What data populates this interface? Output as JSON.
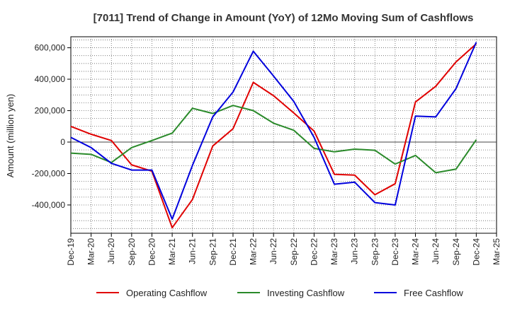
{
  "chart_data": {
    "type": "line",
    "title": "[7011]  Trend of Change in Amount (YoY) of 12Mo Moving Sum of Cashflows",
    "xlabel": "",
    "ylabel": "Amount (million yen)",
    "ylim": [
      -580000,
      670000
    ],
    "yticks": [
      -400000,
      -200000,
      0,
      200000,
      400000,
      600000
    ],
    "ytick_labels": [
      "-400,000",
      "-200,000",
      "0",
      "200,000",
      "400,000",
      "600,000"
    ],
    "categories": [
      "Dec-19",
      "Mar-20",
      "Jun-20",
      "Sep-20",
      "Dec-20",
      "Mar-21",
      "Jun-21",
      "Sep-21",
      "Dec-21",
      "Mar-22",
      "Jun-22",
      "Sep-22",
      "Dec-22",
      "Mar-23",
      "Jun-23",
      "Sep-23",
      "Dec-23",
      "Mar-24",
      "Jun-24",
      "Sep-24",
      "Dec-24",
      "Mar-25"
    ],
    "grid": true,
    "legend_position": "bottom",
    "series": [
      {
        "name": "Operating Cashflow",
        "color": "#e00000",
        "values": [
          100000,
          50000,
          10000,
          -145000,
          -185000,
          -545000,
          -365000,
          -25000,
          85000,
          380000,
          295000,
          185000,
          70000,
          -205000,
          -210000,
          -335000,
          -265000,
          255000,
          355000,
          510000,
          625000,
          null
        ]
      },
      {
        "name": "Investing Cashflow",
        "color": "#2a8a2a",
        "values": [
          -70000,
          -78000,
          -130000,
          -35000,
          10000,
          57000,
          215000,
          182000,
          233000,
          200000,
          120000,
          75000,
          -40000,
          -62000,
          -45000,
          -52000,
          -140000,
          -85000,
          -195000,
          -172000,
          15000,
          null
        ]
      },
      {
        "name": "Free Cashflow",
        "color": "#0000dd",
        "values": [
          30000,
          -35000,
          -135000,
          -178000,
          -178000,
          -490000,
          -148000,
          160000,
          318000,
          578000,
          420000,
          258000,
          30000,
          -268000,
          -255000,
          -385000,
          -400000,
          165000,
          160000,
          340000,
          635000,
          null
        ]
      }
    ]
  }
}
